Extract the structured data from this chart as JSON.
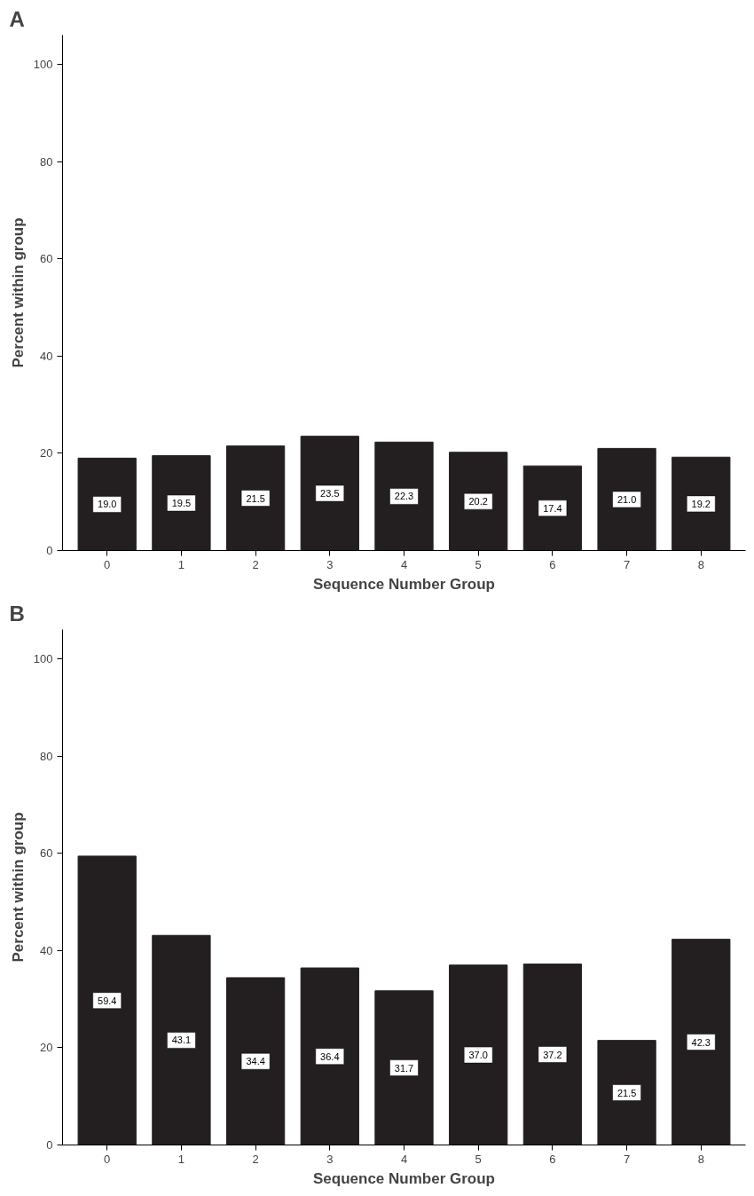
{
  "chart_data": [
    {
      "type": "bar",
      "title": "A",
      "xlabel": "Sequence Number Group",
      "ylabel": "Percent within group",
      "categories": [
        "0",
        "1",
        "2",
        "3",
        "4",
        "5",
        "6",
        "7",
        "8"
      ],
      "values": [
        19.0,
        19.5,
        21.5,
        23.5,
        22.3,
        20.2,
        17.4,
        21.0,
        19.2
      ],
      "value_labels": [
        "19.0",
        "19.5",
        "21.5",
        "23.5",
        "22.3",
        "20.2",
        "17.4",
        "21.0",
        "19.2"
      ],
      "color": "#231f20",
      "ylim": [
        0,
        106
      ],
      "yticks": [
        0,
        20,
        40,
        60,
        80,
        100
      ],
      "grid": false
    },
    {
      "type": "bar",
      "title": "B",
      "xlabel": "Sequence Number Group",
      "ylabel": "Percent within group",
      "categories": [
        "0",
        "1",
        "2",
        "3",
        "4",
        "5",
        "6",
        "7",
        "8"
      ],
      "values": [
        59.4,
        43.1,
        34.4,
        36.4,
        31.7,
        37.0,
        37.2,
        21.5,
        42.3
      ],
      "value_labels": [
        "59.4",
        "43.1",
        "34.4",
        "36.4",
        "31.7",
        "37.0",
        "37.2",
        "21.5",
        "42.3"
      ],
      "color": "#231f20",
      "ylim": [
        0,
        106
      ],
      "yticks": [
        0,
        20,
        40,
        60,
        80,
        100
      ],
      "grid": false
    }
  ]
}
